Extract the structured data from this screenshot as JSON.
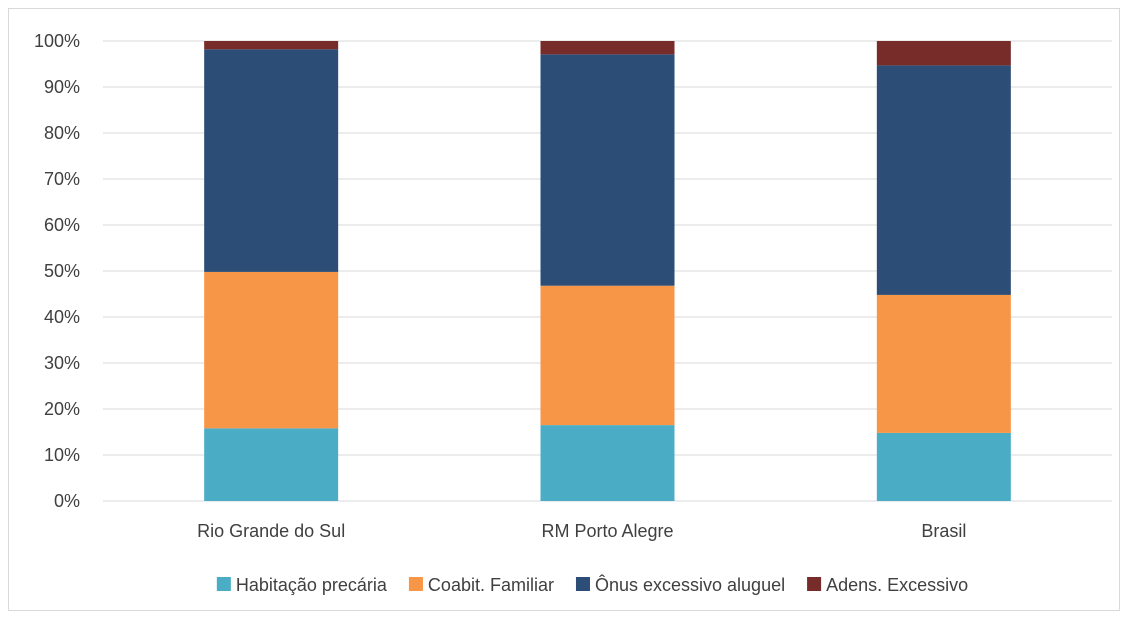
{
  "chart_data": {
    "type": "bar",
    "stacked": true,
    "percent": true,
    "categories": [
      "Rio Grande do Sul",
      "RM Porto Alegre",
      "Brasil"
    ],
    "series": [
      {
        "name": "Habitação precária",
        "color": "#4bacc6",
        "values": [
          15.8,
          16.5,
          14.8
        ]
      },
      {
        "name": "Coabit. Familiar",
        "color": "#f79646",
        "values": [
          34.0,
          30.3,
          30.0
        ]
      },
      {
        "name": "Ônus excessivo aluguel",
        "color": "#2c4d75",
        "values": [
          48.4,
          50.3,
          49.9
        ]
      },
      {
        "name": "Adens. Excessivo",
        "color": "#772c2a",
        "values": [
          1.8,
          2.9,
          5.3
        ]
      }
    ],
    "ylim": [
      0,
      100
    ],
    "yticks": [
      "0%",
      "10%",
      "20%",
      "30%",
      "40%",
      "50%",
      "60%",
      "70%",
      "80%",
      "90%",
      "100%"
    ],
    "grid": true,
    "legend_position": "bottom"
  }
}
